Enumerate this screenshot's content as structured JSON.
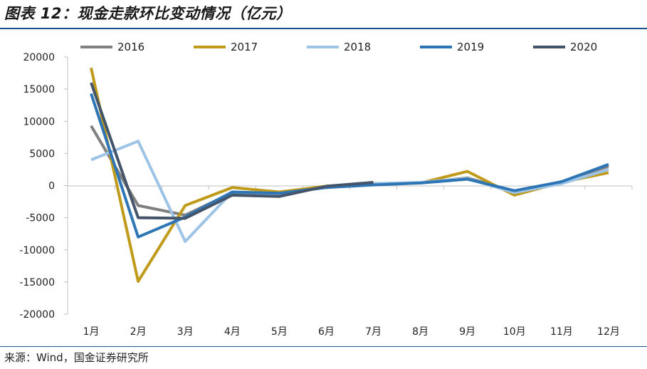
{
  "header": {
    "title": "图表 12：现金走款环比变动情况（亿元）"
  },
  "footer": {
    "source": "来源：Wind，国金证券研究所"
  },
  "chart_data": {
    "type": "line",
    "title": "图表 12：现金走款环比变动情况（亿元）",
    "xlabel": "",
    "ylabel": "",
    "ylim": [
      -20000,
      20000
    ],
    "yticks": [
      20000,
      15000,
      10000,
      5000,
      0,
      -5000,
      -10000,
      -15000,
      -20000
    ],
    "categories": [
      "1月",
      "2月",
      "3月",
      "4月",
      "5月",
      "6月",
      "7月",
      "8月",
      "9月",
      "10月",
      "11月",
      "12月"
    ],
    "legend_position": "top",
    "grid": false,
    "series": [
      {
        "name": "2016",
        "color": "#808080",
        "values": [
          9300,
          -3100,
          -4600,
          -1100,
          -1300,
          -300,
          300,
          400,
          1200,
          -900,
          600,
          3000
        ]
      },
      {
        "name": "2017",
        "color": "#c09a1a",
        "values": [
          18300,
          -14900,
          -3100,
          -300,
          -1000,
          -100,
          300,
          400,
          2200,
          -1500,
          500,
          2000
        ]
      },
      {
        "name": "2018",
        "color": "#9dc3e6",
        "values": [
          4000,
          6900,
          -8700,
          -1000,
          -1300,
          -300,
          300,
          500,
          1100,
          -1100,
          300,
          2500
        ]
      },
      {
        "name": "2019",
        "color": "#2e75b6",
        "values": [
          14300,
          -8000,
          -4900,
          -1000,
          -1200,
          -300,
          100,
          400,
          1000,
          -800,
          600,
          3300
        ]
      },
      {
        "name": "2020",
        "color": "#44546a",
        "values": [
          16000,
          -5000,
          -5100,
          -1500,
          -1700,
          -100,
          500,
          null,
          null,
          null,
          null,
          null
        ]
      }
    ]
  }
}
